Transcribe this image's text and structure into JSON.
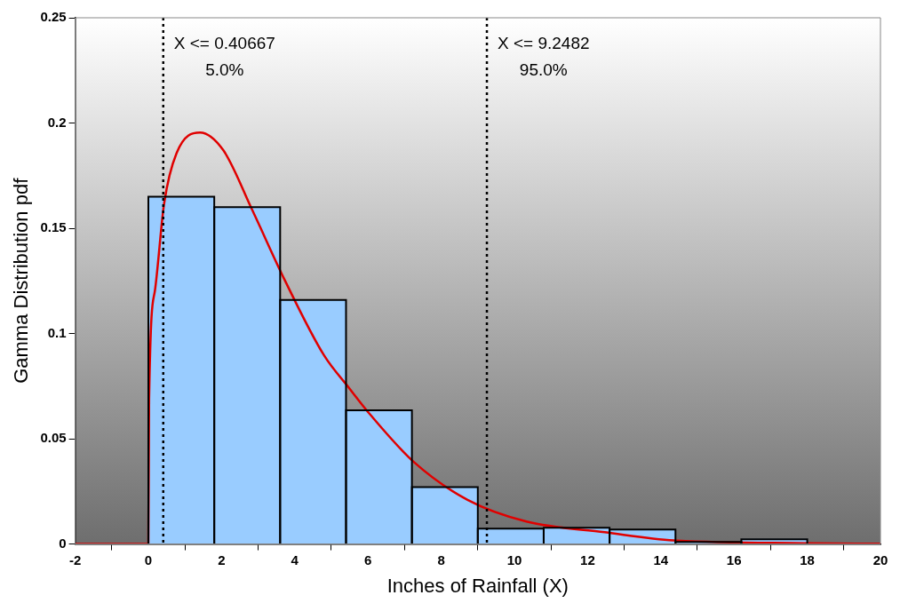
{
  "chart_data": {
    "type": "histogram",
    "xlabel": "Inches of Rainfall (X)",
    "ylabel": "Gamma Distribution pdf",
    "bins": [
      0,
      1.8,
      3.6,
      5.4,
      7.2,
      9.0,
      10.8,
      12.6,
      14.4,
      16.2,
      18.0
    ],
    "values": [
      0.165,
      0.16,
      0.116,
      0.0635,
      0.027,
      0.0073,
      0.0077,
      0.0069,
      0.001,
      0.0023
    ],
    "color": "#99ccff",
    "series": [
      {
        "type": "line",
        "color": "#e00000",
        "marker": "none",
        "x": [
          -2,
          -0.05,
          0,
          0.02,
          0.18,
          0.43,
          0.77,
          1.41,
          2.05,
          2.83,
          3.72,
          4.8,
          5.48,
          6.07,
          7.25,
          8.72,
          10.33,
          12.47,
          14.36,
          18,
          20
        ],
        "values": [
          0,
          0,
          0.0004,
          0.069,
          0.1205,
          0.1617,
          0.1857,
          0.1955,
          0.187,
          0.159,
          0.1256,
          0.0896,
          0.0742,
          0.0613,
          0.039,
          0.021,
          0.0107,
          0.0056,
          0.0017,
          0.0004,
          0.0001
        ]
      }
    ],
    "xlim": [
      -2,
      20
    ],
    "xticks": [
      -2,
      0,
      2,
      4,
      6,
      8,
      10,
      12,
      14,
      16,
      18,
      20
    ],
    "ylim": [
      0,
      0.25
    ],
    "yticks": [
      0,
      0.05,
      0.1,
      0.15,
      0.2,
      0.25
    ],
    "ref_lines": [
      {
        "axis": "x",
        "value": 0.40667,
        "label": "X <= 0.40667\n5.0%",
        "color": "#000000",
        "line_style": "dotted"
      },
      {
        "axis": "x",
        "value": 9.2482,
        "label": "X <= 9.2482\n95.0%",
        "color": "#000000",
        "line_style": "dotted"
      }
    ]
  }
}
